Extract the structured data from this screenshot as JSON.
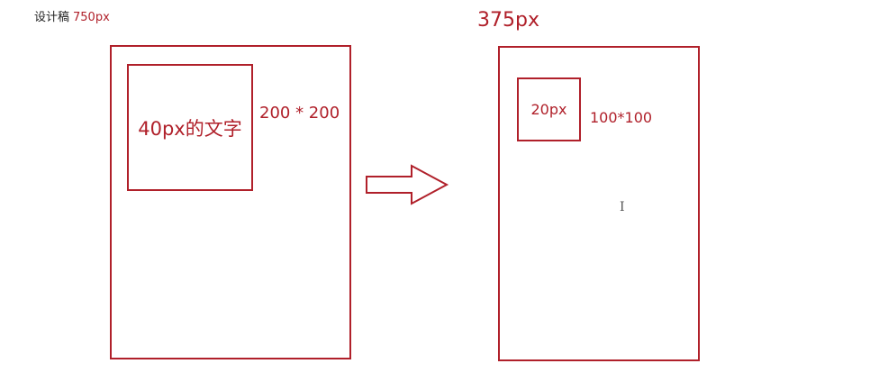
{
  "design": {
    "label": "设计稿",
    "width_label": "750px"
  },
  "left_panel": {
    "box_text": "40px的文字",
    "box_dimension": "200 * 200"
  },
  "right_panel": {
    "title": "375px",
    "box_text": "20px",
    "box_dimension": "100*100"
  },
  "colors": {
    "accent": "#b0202a",
    "text": "#222222"
  },
  "icons": {
    "transform_arrow": "right-arrow-icon",
    "cursor": "text-cursor-icon"
  }
}
